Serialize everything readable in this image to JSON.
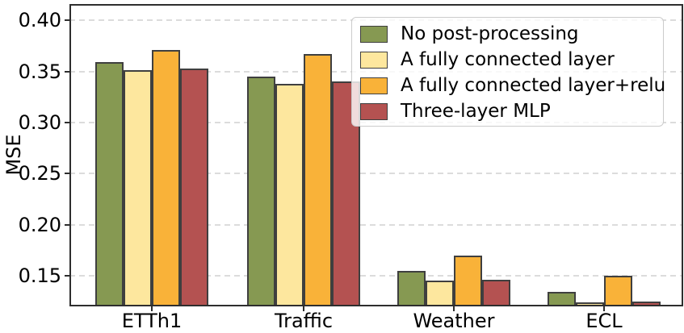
{
  "chart_data": {
    "type": "bar",
    "ylabel": "MSE",
    "categories": [
      "ETTh1",
      "Traffic",
      "Weather",
      "ECL"
    ],
    "series": [
      {
        "name": "No post-processing",
        "color": "#869952",
        "values": [
          0.359,
          0.345,
          0.155,
          0.134
        ]
      },
      {
        "name": "A fully connected layer",
        "color": "#FDE79E",
        "values": [
          0.351,
          0.338,
          0.145,
          0.124
        ]
      },
      {
        "name": "A fully connected layer+relu",
        "color": "#F9B239",
        "values": [
          0.371,
          0.367,
          0.17,
          0.15
        ]
      },
      {
        "name": "Three-layer MLP",
        "color": "#B45251",
        "values": [
          0.353,
          0.34,
          0.146,
          0.125
        ]
      }
    ],
    "ylim": [
      0.12,
      0.416
    ],
    "yticks": [
      0.15,
      0.2,
      0.25,
      0.3,
      0.35,
      0.4
    ],
    "ytick_labels": [
      "0.15",
      "0.20",
      "0.25",
      "0.30",
      "0.35",
      "0.40"
    ],
    "grid": "horizontal-dashed",
    "legend_position": "upper-right",
    "bar_edge_color": "#3F3F3F",
    "grid_color": "#DCDCDC",
    "axis_color": "#2E2E2E",
    "legend_border_color": "#CCCCCC"
  }
}
